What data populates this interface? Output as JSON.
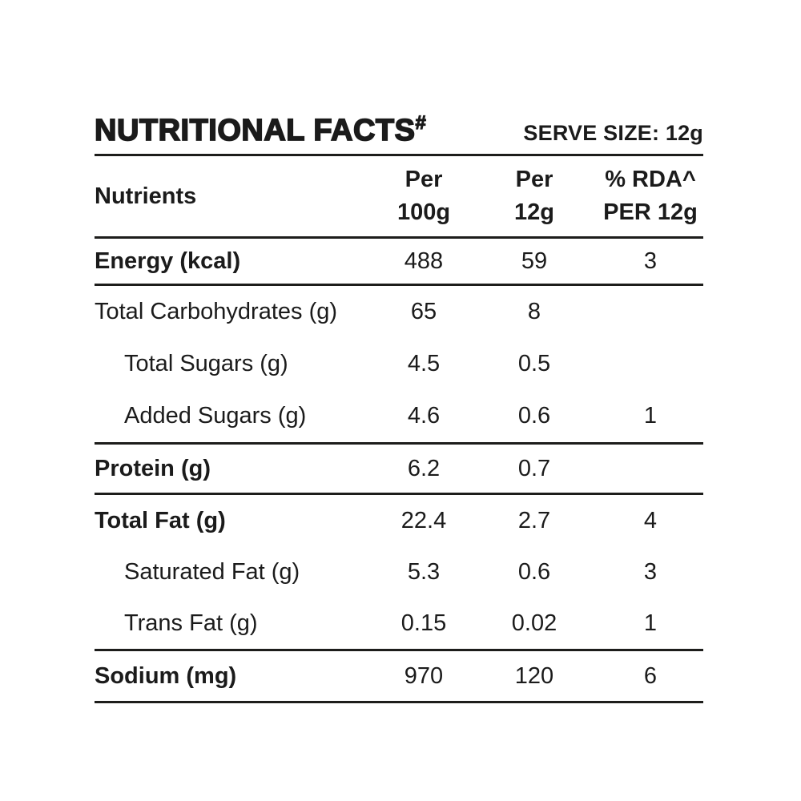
{
  "page": {
    "background": "#ffffff",
    "text_color": "#1b1b1b",
    "rule_color": "#1d1d1b"
  },
  "header": {
    "title": "NUTRITIONAL FACTS",
    "title_mark": "#",
    "serve_size": "SERVE SIZE: 12g"
  },
  "table": {
    "columns": {
      "nutrients": "Nutrients",
      "per100_line1": "Per",
      "per100_line2": "100g",
      "per12_line1": "Per",
      "per12_line2": "12g",
      "rda_line1": "% RDA^",
      "rda_line2": "PER 12g"
    },
    "rows": [
      {
        "label": "Energy (kcal)",
        "per100": "488",
        "per12": "59",
        "rda": "3"
      },
      {
        "label": "Total Carbohydrates (g)",
        "per100": "65",
        "per12": "8",
        "rda": ""
      },
      {
        "label": "Total Sugars (g)",
        "per100": "4.5",
        "per12": "0.5",
        "rda": ""
      },
      {
        "label": "Added Sugars (g)",
        "per100": "4.6",
        "per12": "0.6",
        "rda": "1"
      },
      {
        "label": "Protein (g)",
        "per100": "6.2",
        "per12": "0.7",
        "rda": ""
      },
      {
        "label": "Total Fat (g)",
        "per100": "22.4",
        "per12": "2.7",
        "rda": "4"
      },
      {
        "label": "Saturated Fat (g)",
        "per100": "5.3",
        "per12": "0.6",
        "rda": "3"
      },
      {
        "label": "Trans Fat (g)",
        "per100": "0.15",
        "per12": "0.02",
        "rda": "1"
      },
      {
        "label": "Sodium (mg)",
        "per100": "970",
        "per12": "120",
        "rda": "6"
      }
    ]
  }
}
